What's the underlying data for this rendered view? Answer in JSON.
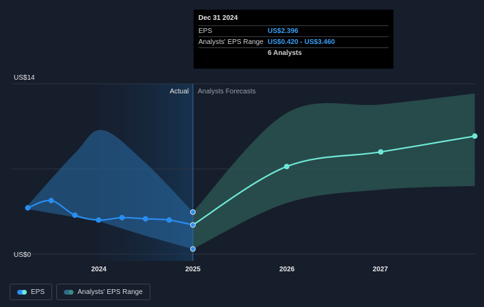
{
  "chart_data": {
    "type": "line",
    "y_axis": {
      "labels": [
        "US$14",
        "US$0"
      ],
      "ylim": [
        0,
        14
      ]
    },
    "x_axis": {
      "ticks": [
        "2024",
        "2025",
        "2026",
        "2027"
      ]
    },
    "divider": {
      "actual_label": "Actual",
      "forecast_label": "Analysts Forecasts"
    },
    "series": [
      {
        "name": "EPS",
        "kind": "actual",
        "x": [
          "2023-03-31",
          "2023-06-30",
          "2023-09-30",
          "2023-12-31",
          "2024-03-31",
          "2024-06-30",
          "2024-09-30",
          "2024-12-31"
        ],
        "y": [
          3.8,
          4.4,
          3.2,
          2.8,
          3.0,
          2.9,
          2.8,
          2.4
        ]
      },
      {
        "name": "EPS",
        "kind": "forecast",
        "x": [
          "2024-12-31",
          "2025-12-31",
          "2026-12-31",
          "2027-12-31"
        ],
        "y": [
          2.4,
          7.2,
          8.4,
          9.7
        ]
      }
    ],
    "range_series": {
      "name": "Analysts' EPS Range",
      "x": [
        "2024-12-31",
        "2025-12-31",
        "2026-12-31",
        "2027-12-31"
      ],
      "low": [
        0.42,
        4.2,
        5.3,
        5.6
      ],
      "high": [
        3.46,
        11.6,
        12.3,
        13.2
      ]
    },
    "range_marker": {
      "x": "2024-12-31",
      "low": 0.42,
      "high": 3.46
    }
  },
  "tooltip": {
    "date": "Dec 31 2024",
    "rows": [
      {
        "label": "EPS",
        "value": "US$2.396"
      },
      {
        "label": "Analysts' EPS Range",
        "value": "US$0.420 - US$3.460"
      },
      {
        "label": "",
        "value": "6 Analysts"
      }
    ]
  },
  "legend": {
    "items": [
      {
        "label": "EPS"
      },
      {
        "label": "Analysts' EPS Range"
      }
    ]
  },
  "colors": {
    "background": "#161d2b",
    "eps_actual": "#2a8cf0",
    "eps_forecast": "#6fe7d7",
    "range_forecast": "#2e5a56",
    "actual_band": "#1f4f7a"
  }
}
